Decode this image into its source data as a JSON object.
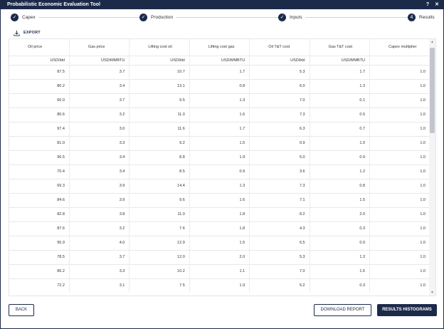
{
  "window": {
    "title": "Probabilistic Economic Evaluation Tool",
    "help_glyph": "?",
    "close_glyph": "✕"
  },
  "stepper": {
    "steps": [
      {
        "label": "Capex",
        "glyph": "✓"
      },
      {
        "label": "Production",
        "glyph": "✓"
      },
      {
        "label": "Inputs",
        "glyph": "✓"
      },
      {
        "label": "Results",
        "glyph": "4"
      }
    ]
  },
  "toolbar": {
    "export_label": "EXPORT"
  },
  "table": {
    "headers": [
      "Oil price",
      "Gas price",
      "Lifting cost oil",
      "Lifting cost gas",
      "Oil T&T cost",
      "Gas T&T cost",
      "Capex multiplier"
    ],
    "units": [
      "USD/bbl",
      "USD/MMBTU",
      "USD/bbl",
      "USD/MMBTU",
      "USD/bbl",
      "USD/MMBTU",
      ""
    ],
    "rows": [
      [
        "87.5",
        "3.7",
        "10.7",
        "1.7",
        "5.3",
        "1.7",
        "1.0"
      ],
      [
        "80.2",
        "3.4",
        "13.1",
        "0.8",
        "6.0",
        "1.3",
        "1.0"
      ],
      [
        "60.0",
        "3.7",
        "9.5",
        "1.3",
        "7.0",
        "0.1",
        "1.0"
      ],
      [
        "80.6",
        "3.2",
        "11.0",
        "1.6",
        "7.3",
        "0.5",
        "1.0"
      ],
      [
        "97.4",
        "3.0",
        "11.6",
        "1.7",
        "6.3",
        "0.7",
        "1.0"
      ],
      [
        "81.0",
        "3.3",
        "9.2",
        "1.5",
        "0.9",
        "1.0",
        "1.0"
      ],
      [
        "96.5",
        "3.4",
        "8.8",
        "1.9",
        "5.0",
        "0.9",
        "1.0"
      ],
      [
        "70.4",
        "3.4",
        "8.5",
        "0.9",
        "3.6",
        "1.2",
        "1.0"
      ],
      [
        "69.3",
        "3.9",
        "14.4",
        "1.3",
        "7.3",
        "0.8",
        "1.0"
      ],
      [
        "84.6",
        "3.9",
        "9.6",
        "1.6",
        "7.1",
        "1.5",
        "1.0"
      ],
      [
        "82.8",
        "3.8",
        "11.0",
        "1.8",
        "8.2",
        "2.0",
        "1.0"
      ],
      [
        "87.6",
        "3.2",
        "7.6",
        "1.8",
        "4.3",
        "0.3",
        "1.0"
      ],
      [
        "95.9",
        "4.0",
        "12.9",
        "1.5",
        "6.5",
        "0.9",
        "1.0"
      ],
      [
        "78.5",
        "3.7",
        "12.0",
        "2.0",
        "5.3",
        "1.3",
        "1.0"
      ],
      [
        "86.2",
        "3.3",
        "10.2",
        "1.1",
        "7.0",
        "1.6",
        "1.0"
      ],
      [
        "72.2",
        "3.1",
        "7.5",
        "1.9",
        "5.2",
        "0.3",
        "1.0"
      ]
    ]
  },
  "scroll": {
    "up_glyph": "▲",
    "down_glyph": "▼"
  },
  "footer": {
    "back_label": "BACK",
    "report_label": "DOWNLOAD REPORT",
    "histograms_label": "RESULTS HISTOGRAMS"
  }
}
